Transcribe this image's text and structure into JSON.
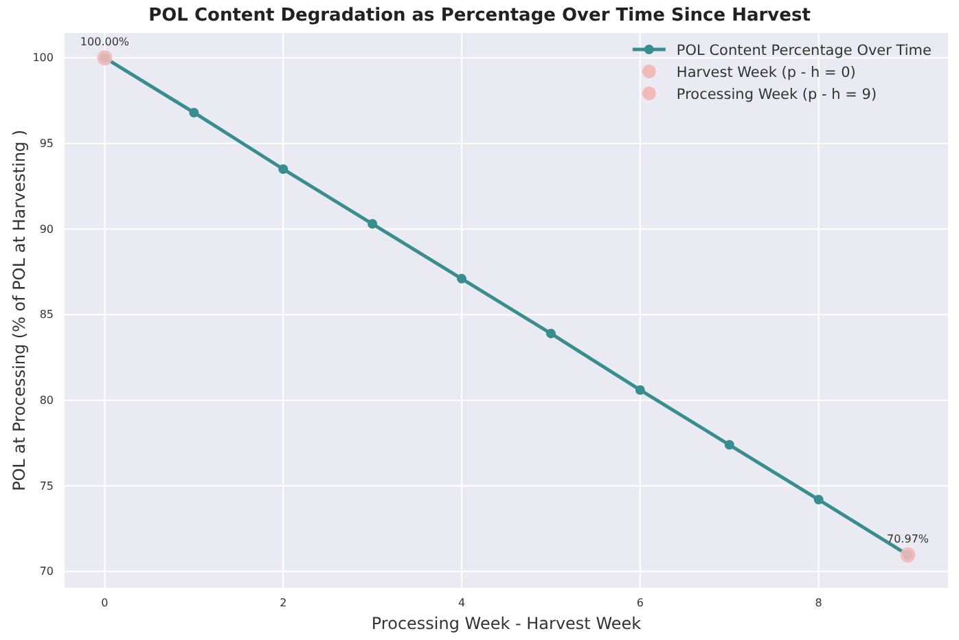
{
  "chart_data": {
    "type": "line",
    "title": "POL Content Degradation as Percentage Over Time Since Harvest",
    "xlabel": "Processing Week - Harvest Week",
    "ylabel": "POL at Processing (% of POL at Harvesting )",
    "x": [
      0,
      1,
      2,
      3,
      4,
      5,
      6,
      7,
      8,
      9
    ],
    "series": [
      {
        "name": "POL Content Percentage Over Time",
        "color": "#3a8d8f",
        "values": [
          100,
          96.8,
          93.5,
          90.3,
          87.1,
          83.9,
          80.6,
          77.4,
          74.2,
          70.97
        ]
      },
      {
        "name": "Harvest Week (p - h = 0)",
        "type": "scatter",
        "color": "#f2b9b9",
        "x": [
          0
        ],
        "values": [
          100
        ]
      },
      {
        "name": "Processing Week (p - h = 9)",
        "type": "scatter",
        "color": "#f2b9b9",
        "x": [
          9
        ],
        "values": [
          70.97
        ]
      }
    ],
    "annotations": [
      {
        "text": "100.00%",
        "x": 0,
        "y": 100
      },
      {
        "text": "70.97%",
        "x": 9,
        "y": 70.97
      }
    ],
    "xlim": [
      -0.45,
      9.45
    ],
    "ylim": [
      69.05,
      101.45
    ],
    "xticks": [
      0,
      2,
      4,
      6,
      8
    ],
    "yticks": [
      70,
      75,
      80,
      85,
      90,
      95,
      100
    ],
    "grid": true,
    "legend": "top right",
    "marker": "circle",
    "line_style": "solid"
  }
}
